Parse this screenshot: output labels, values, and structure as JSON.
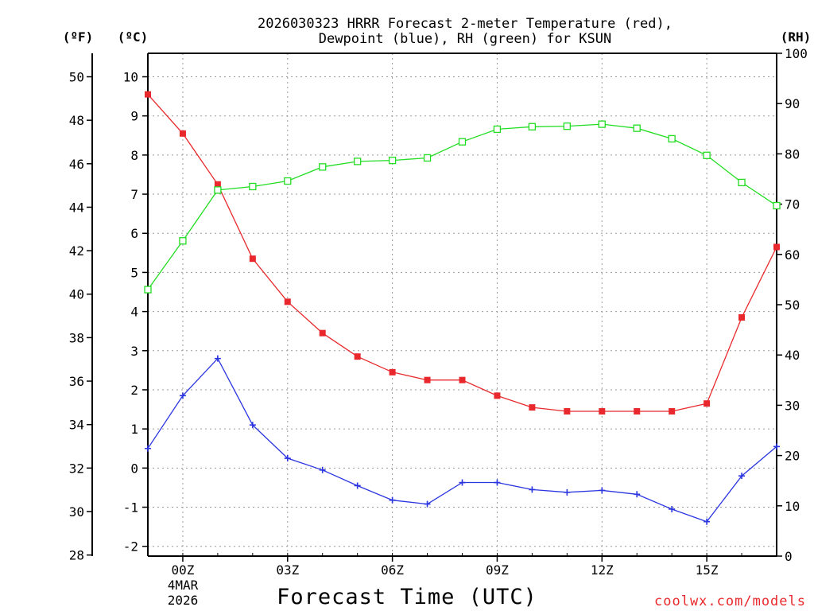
{
  "chart_data": {
    "type": "line",
    "title_line1": "2026030323 HRRR Forecast 2-meter Temperature (red),",
    "title_line2": "Dewpoint (blue), RH (green) for KSUN",
    "xlabel": "Forecast Time (UTC)",
    "credit": "coolwx.com/models",
    "unit_f": "(ºF)",
    "unit_c": "(ºC)",
    "unit_rh": "(RH)",
    "date_label": [
      "4MAR",
      "2026"
    ],
    "x_hours": [
      -1,
      0,
      1,
      2,
      3,
      4,
      5,
      6,
      7,
      8,
      9,
      10,
      11,
      12,
      13,
      14,
      15,
      16,
      17
    ],
    "x_ticks": [
      {
        "hour": 0,
        "label": "00Z"
      },
      {
        "hour": 3,
        "label": "03Z"
      },
      {
        "hour": 6,
        "label": "06Z"
      },
      {
        "hour": 9,
        "label": "09Z"
      },
      {
        "hour": 12,
        "label": "12Z"
      },
      {
        "hour": 15,
        "label": "15Z"
      }
    ],
    "xlim": [
      -1,
      17
    ],
    "celsius_axis": {
      "ylim": [
        -2.25,
        10.6
      ],
      "ticks": [
        -2,
        -1,
        0,
        1,
        2,
        3,
        4,
        5,
        6,
        7,
        8,
        9,
        10
      ]
    },
    "fahrenheit_axis": {
      "ticks": [
        28,
        30,
        32,
        34,
        36,
        38,
        40,
        42,
        44,
        46,
        48,
        50
      ]
    },
    "rh_axis": {
      "ylim": [
        0,
        100
      ],
      "ticks": [
        0,
        10,
        20,
        30,
        40,
        50,
        60,
        70,
        80,
        90,
        100
      ]
    },
    "series": [
      {
        "name": "Temperature",
        "axis": "celsius",
        "color": "#e8282c",
        "marker": "filled-square",
        "values": [
          9.55,
          8.55,
          7.25,
          5.35,
          4.25,
          3.45,
          2.85,
          2.45,
          2.25,
          2.25,
          1.85,
          1.55,
          1.45,
          1.45,
          1.45,
          1.45,
          1.65,
          3.85,
          5.65
        ]
      },
      {
        "name": "Dewpoint",
        "axis": "celsius",
        "color": "#2a35e0",
        "marker": "plus",
        "values": [
          0.5,
          1.85,
          2.8,
          1.1,
          0.25,
          -0.05,
          -0.45,
          -0.82,
          -0.92,
          -0.37,
          -0.37,
          -0.55,
          -0.62,
          -0.57,
          -0.67,
          -1.05,
          -1.37,
          -0.2,
          0.55
        ]
      },
      {
        "name": "RH",
        "axis": "rh",
        "color": "#22dd22",
        "marker": "open-square",
        "values": [
          53,
          62.7,
          72.8,
          73.5,
          74.6,
          77.4,
          78.5,
          78.7,
          79.2,
          82.4,
          84.9,
          85.4,
          85.5,
          85.9,
          85.1,
          83.0,
          79.7,
          74.3,
          69.7
        ]
      }
    ]
  }
}
